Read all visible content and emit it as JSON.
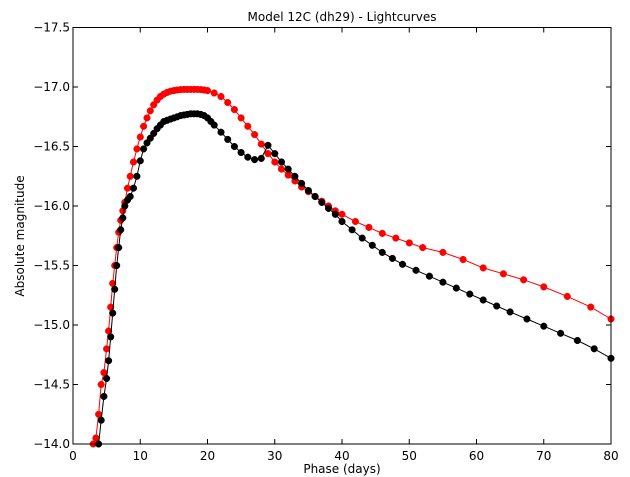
{
  "chart_data": {
    "type": "line",
    "title": "Model 12C (dh29) - Lightcurves",
    "xlabel": "Phase (days)",
    "ylabel": "Absolute magnitude",
    "xlim": [
      0,
      80
    ],
    "ylim": [
      -14.0,
      -17.5
    ],
    "y_axis_inverted": true,
    "grid": false,
    "legend": "none",
    "x_ticks": [
      0,
      10,
      20,
      30,
      40,
      50,
      60,
      70,
      80
    ],
    "y_ticks": [
      -14.0,
      -14.5,
      -15.0,
      -15.5,
      -16.0,
      -16.5,
      -17.0,
      -17.5
    ],
    "x_tick_labels": [
      "0",
      "10",
      "20",
      "30",
      "40",
      "50",
      "60",
      "70",
      "80"
    ],
    "y_tick_labels": [
      "−14.0",
      "−14.5",
      "−15.0",
      "−15.5",
      "−16.0",
      "−16.5",
      "−17.0",
      "−17.5"
    ],
    "series": [
      {
        "color": "#ff0000",
        "marker": "circle",
        "x": [
          3.0,
          3.4,
          3.8,
          4.2,
          4.6,
          5.0,
          5.3,
          5.6,
          5.9,
          6.2,
          6.5,
          6.8,
          7.1,
          7.4,
          7.7,
          8.1,
          8.5,
          9.0,
          9.5,
          10.0,
          10.5,
          11.0,
          11.5,
          12.0,
          12.5,
          13.0,
          13.5,
          14.0,
          14.5,
          15.0,
          15.5,
          16.0,
          16.5,
          17.0,
          17.5,
          18.0,
          18.5,
          19.0,
          19.5,
          20.0,
          21.0,
          22.0,
          23.0,
          24.0,
          25.0,
          26.0,
          27.0,
          28.0,
          29.0,
          30.0,
          31.0,
          32.0,
          33.0,
          34.0,
          35.0,
          36.0,
          37.0,
          38.0,
          39.0,
          40.0,
          42.0,
          44.0,
          46.0,
          48.0,
          50.0,
          52.0,
          55.0,
          58.0,
          61.0,
          64.0,
          67.0,
          70.0,
          73.5,
          77.0,
          80.0
        ],
        "y": [
          -14.0,
          -14.05,
          -14.25,
          -14.5,
          -14.6,
          -14.8,
          -14.95,
          -15.15,
          -15.35,
          -15.5,
          -15.65,
          -15.78,
          -15.88,
          -15.96,
          -16.03,
          -16.15,
          -16.25,
          -16.37,
          -16.48,
          -16.58,
          -16.67,
          -16.74,
          -16.8,
          -16.85,
          -16.89,
          -16.92,
          -16.94,
          -16.955,
          -16.965,
          -16.97,
          -16.975,
          -16.978,
          -16.98,
          -16.98,
          -16.98,
          -16.98,
          -16.98,
          -16.978,
          -16.975,
          -16.97,
          -16.95,
          -16.92,
          -16.87,
          -16.81,
          -16.74,
          -16.67,
          -16.6,
          -16.52,
          -16.44,
          -16.37,
          -16.31,
          -16.26,
          -16.21,
          -16.16,
          -16.12,
          -16.08,
          -16.04,
          -16.0,
          -15.96,
          -15.93,
          -15.87,
          -15.82,
          -15.77,
          -15.73,
          -15.69,
          -15.65,
          -15.61,
          -15.55,
          -15.48,
          -15.43,
          -15.38,
          -15.32,
          -15.24,
          -15.15,
          -15.05
        ]
      },
      {
        "color": "#000000",
        "marker": "circle",
        "x": [
          3.8,
          4.2,
          4.6,
          5.0,
          5.3,
          5.6,
          5.9,
          6.2,
          6.5,
          6.8,
          7.1,
          7.4,
          7.7,
          8.1,
          8.5,
          9.0,
          9.5,
          10.0,
          10.5,
          11.0,
          11.5,
          12.0,
          12.5,
          13.0,
          13.5,
          14.0,
          14.5,
          15.0,
          15.5,
          16.0,
          16.5,
          17.0,
          17.5,
          18.0,
          18.5,
          19.0,
          19.5,
          20.0,
          20.5,
          21.0,
          22.0,
          23.0,
          24.0,
          25.0,
          26.0,
          27.0,
          28.0,
          29.0,
          30.0,
          31.0,
          32.0,
          33.0,
          34.0,
          35.0,
          36.0,
          37.0,
          38.0,
          39.0,
          40.0,
          41.5,
          43.0,
          44.5,
          46.0,
          47.5,
          49.0,
          51.0,
          53.0,
          55.0,
          57.0,
          59.0,
          61.0,
          63.0,
          65.0,
          67.5,
          70.0,
          72.5,
          75.0,
          77.5,
          80.0
        ],
        "y": [
          -14.0,
          -14.2,
          -14.4,
          -14.55,
          -14.7,
          -14.9,
          -15.1,
          -15.3,
          -15.5,
          -15.65,
          -15.8,
          -15.9,
          -16.0,
          -16.05,
          -16.08,
          -16.15,
          -16.25,
          -16.38,
          -16.48,
          -16.53,
          -16.57,
          -16.61,
          -16.65,
          -16.68,
          -16.71,
          -16.72,
          -16.73,
          -16.74,
          -16.75,
          -16.76,
          -16.765,
          -16.77,
          -16.775,
          -16.775,
          -16.775,
          -16.77,
          -16.76,
          -16.74,
          -16.71,
          -16.68,
          -16.62,
          -16.56,
          -16.5,
          -16.45,
          -16.41,
          -16.39,
          -16.4,
          -16.51,
          -16.44,
          -16.37,
          -16.31,
          -16.25,
          -16.19,
          -16.13,
          -16.08,
          -16.03,
          -15.98,
          -15.93,
          -15.87,
          -15.8,
          -15.73,
          -15.67,
          -15.61,
          -15.56,
          -15.51,
          -15.46,
          -15.41,
          -15.36,
          -15.31,
          -15.26,
          -15.21,
          -15.16,
          -15.11,
          -15.05,
          -14.99,
          -14.93,
          -14.87,
          -14.8,
          -14.72
        ]
      }
    ]
  }
}
